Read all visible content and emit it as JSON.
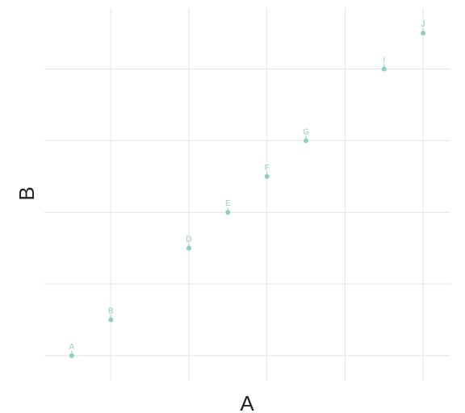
{
  "chart_data": {
    "type": "scatter",
    "xlabel": "A",
    "ylabel": "B",
    "grid": true,
    "legend": "none",
    "color": "#8ecfc5",
    "xlim": [
      0.3,
      10.7
    ],
    "ylim": [
      -0.7,
      9.7
    ],
    "x_gridlines": [
      2,
      4,
      6,
      8,
      10
    ],
    "y_gridlines": [
      0,
      2,
      4,
      6,
      8
    ],
    "points": [
      {
        "label": "A",
        "x": 1,
        "y": 0
      },
      {
        "label": "B",
        "x": 2,
        "y": 1
      },
      {
        "label": "D",
        "x": 4,
        "y": 3
      },
      {
        "label": "E",
        "x": 5,
        "y": 4
      },
      {
        "label": "F",
        "x": 6,
        "y": 5
      },
      {
        "label": "G",
        "x": 7,
        "y": 6
      },
      {
        "label": "I",
        "x": 9,
        "y": 8
      },
      {
        "label": "J",
        "x": 10,
        "y": 9
      }
    ]
  }
}
